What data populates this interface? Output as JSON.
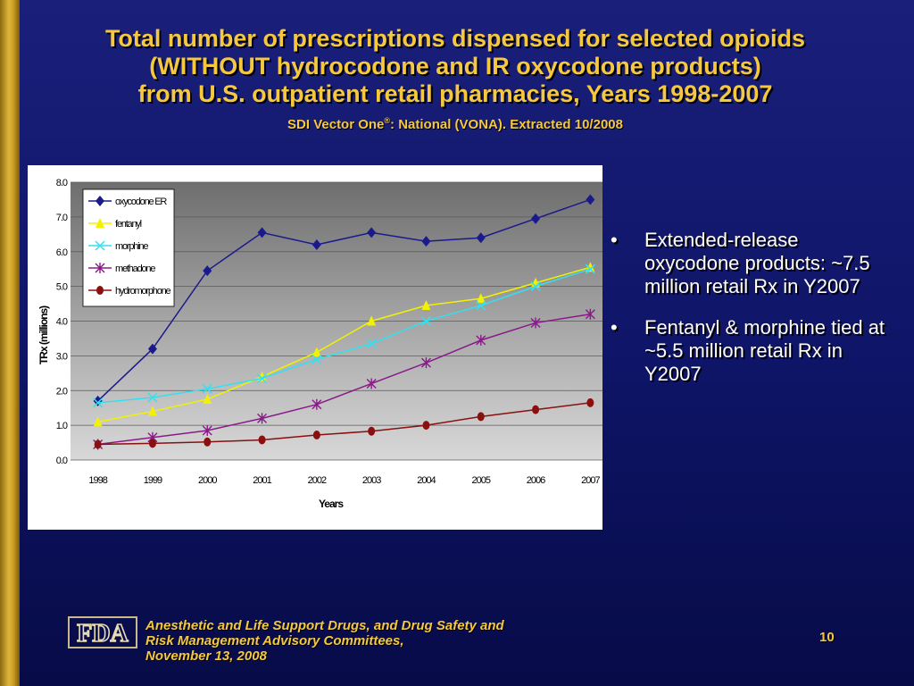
{
  "slide": {
    "title_lines": [
      "Total number of prescriptions dispensed for selected opioids",
      "(WITHOUT hydrocodone and IR oxycodone products)",
      "from U.S. outpatient retail pharmacies, Years 1998-2007"
    ],
    "subtitle_before": "SDI Vector One",
    "subtitle_reg": "®",
    "subtitle_after": ": National (VONA).  Extracted 10/2008",
    "bullets": [
      "Extended-release oxycodone products: ~7.5 million retail Rx in Y2007",
      "Fentanyl & morphine tied at ~5.5 million retail Rx in Y2007"
    ],
    "bullet_glyph": "•",
    "footer_lines": [
      "Anesthetic and Life Support Drugs, and Drug Safety and",
      "Risk Management Advisory Committees,",
      "November 13, 2008"
    ],
    "page_number": "10",
    "logo_text": "FDA",
    "colors": {
      "title": "#f5c840",
      "background": "#0e1466",
      "accent_bar": "#d4a830"
    }
  },
  "chart_data": {
    "type": "line",
    "xlabel": "Years",
    "ylabel": "TRx (millions)",
    "ylim": [
      0,
      8
    ],
    "yticks": [
      "0.0",
      "1.0",
      "2.0",
      "3.0",
      "4.0",
      "5.0",
      "6.0",
      "7.0",
      "8.0"
    ],
    "x": [
      "1998",
      "1999",
      "2000",
      "2001",
      "2002",
      "2003",
      "2004",
      "2005",
      "2006",
      "2007"
    ],
    "grid": "horizontal",
    "legend_position": "top-left",
    "series": [
      {
        "name": "oxycodone ER",
        "color": "#1a1a8c",
        "marker": "diamond",
        "values": [
          1.7,
          3.2,
          5.45,
          6.55,
          6.2,
          6.55,
          6.3,
          6.4,
          6.95,
          7.5
        ]
      },
      {
        "name": "fentanyl",
        "color": "#f2f200",
        "marker": "triangle",
        "values": [
          1.1,
          1.4,
          1.75,
          2.4,
          3.1,
          4.0,
          4.45,
          4.65,
          5.1,
          5.55
        ]
      },
      {
        "name": "morphine",
        "color": "#33e0f0",
        "marker": "x",
        "values": [
          1.65,
          1.8,
          2.05,
          2.35,
          2.9,
          3.35,
          4.0,
          4.45,
          5.0,
          5.5
        ]
      },
      {
        "name": "methadone",
        "color": "#8a1a8a",
        "marker": "star",
        "values": [
          0.45,
          0.65,
          0.85,
          1.2,
          1.6,
          2.2,
          2.8,
          3.45,
          3.95,
          4.2
        ]
      },
      {
        "name": "hydromorphone",
        "color": "#8a1010",
        "marker": "circle",
        "values": [
          0.45,
          0.48,
          0.52,
          0.58,
          0.72,
          0.83,
          1.0,
          1.25,
          1.45,
          1.65
        ]
      }
    ]
  }
}
